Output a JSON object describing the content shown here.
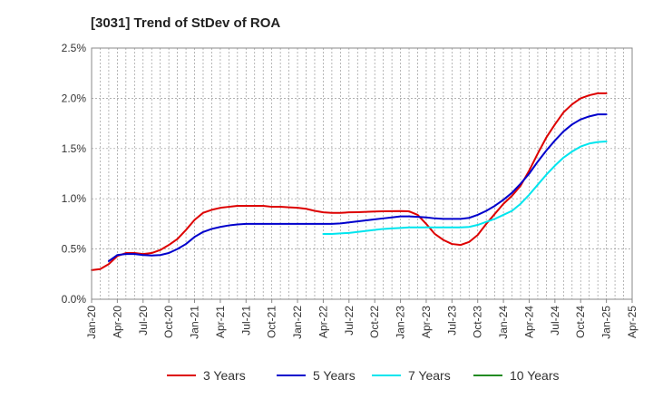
{
  "chart_data": {
    "type": "line",
    "title": "[3031]  Trend of StDev of ROA",
    "xlabel": "",
    "ylabel": "",
    "y_ticks": [
      "0.0%",
      "0.5%",
      "1.0%",
      "1.5%",
      "2.0%",
      "2.5%"
    ],
    "ylim": [
      0,
      2.5
    ],
    "x_ticks": [
      "Jan-20",
      "Apr-20",
      "Jul-20",
      "Oct-20",
      "Jan-21",
      "Apr-21",
      "Jul-21",
      "Oct-21",
      "Jan-22",
      "Apr-22",
      "Jul-22",
      "Oct-22",
      "Jan-23",
      "Apr-23",
      "Jul-23",
      "Oct-23",
      "Jan-24",
      "Apr-24",
      "Jul-24",
      "Oct-24",
      "Jan-25",
      "Apr-25"
    ],
    "grid": true,
    "legend_position": "bottom",
    "colors": {
      "3 Years": "#dd0000",
      "5 Years": "#0000cc",
      "7 Years": "#00e5ee",
      "10 Years": "#228b22",
      "grid": "#999999",
      "axis": "#888888"
    },
    "series": [
      {
        "name": "3 Years",
        "x": [
          "Jan-20",
          "Feb-20",
          "Mar-20",
          "Apr-20",
          "May-20",
          "Jun-20",
          "Jul-20",
          "Aug-20",
          "Sep-20",
          "Oct-20",
          "Nov-20",
          "Dec-20",
          "Jan-21",
          "Feb-21",
          "Mar-21",
          "Apr-21",
          "May-21",
          "Jun-21",
          "Jul-21",
          "Aug-21",
          "Sep-21",
          "Oct-21",
          "Nov-21",
          "Dec-21",
          "Jan-22",
          "Feb-22",
          "Mar-22",
          "Apr-22",
          "May-22",
          "Jun-22",
          "Jul-22",
          "Aug-22",
          "Sep-22",
          "Oct-22",
          "Nov-22",
          "Dec-22",
          "Jan-23",
          "Feb-23",
          "Mar-23",
          "Apr-23",
          "May-23",
          "Jun-23",
          "Jul-23",
          "Aug-23",
          "Sep-23",
          "Oct-23",
          "Nov-23",
          "Dec-23",
          "Jan-24",
          "Feb-24",
          "Mar-24",
          "Apr-24",
          "May-24",
          "Jun-24",
          "Jul-24",
          "Aug-24",
          "Sep-24",
          "Oct-24",
          "Nov-24",
          "Dec-24",
          "Jan-25"
        ],
        "values": [
          0.29,
          0.3,
          0.35,
          0.43,
          0.46,
          0.46,
          0.45,
          0.46,
          0.49,
          0.54,
          0.6,
          0.69,
          0.79,
          0.86,
          0.89,
          0.91,
          0.92,
          0.93,
          0.93,
          0.93,
          0.93,
          0.92,
          0.92,
          0.915,
          0.91,
          0.9,
          0.88,
          0.865,
          0.86,
          0.86,
          0.865,
          0.867,
          0.87,
          0.873,
          0.875,
          0.877,
          0.878,
          0.875,
          0.84,
          0.75,
          0.65,
          0.59,
          0.55,
          0.54,
          0.57,
          0.64,
          0.75,
          0.85,
          0.95,
          1.03,
          1.13,
          1.28,
          1.45,
          1.61,
          1.74,
          1.86,
          1.94,
          2.0,
          2.03,
          2.05,
          2.05
        ]
      },
      {
        "name": "5 Years",
        "x": [
          "Mar-20",
          "Apr-20",
          "May-20",
          "Jun-20",
          "Jul-20",
          "Aug-20",
          "Sep-20",
          "Oct-20",
          "Nov-20",
          "Dec-20",
          "Jan-21",
          "Feb-21",
          "Mar-21",
          "Apr-21",
          "May-21",
          "Jun-21",
          "Jul-21",
          "Aug-21",
          "Sep-21",
          "Oct-21",
          "Nov-21",
          "Dec-21",
          "Jan-22",
          "Feb-22",
          "Mar-22",
          "Apr-22",
          "May-22",
          "Jun-22",
          "Jul-22",
          "Aug-22",
          "Sep-22",
          "Oct-22",
          "Nov-22",
          "Dec-22",
          "Jan-23",
          "Feb-23",
          "Mar-23",
          "Apr-23",
          "May-23",
          "Jun-23",
          "Jul-23",
          "Aug-23",
          "Sep-23",
          "Oct-23",
          "Nov-23",
          "Dec-23",
          "Jan-24",
          "Feb-24",
          "Mar-24",
          "Apr-24",
          "May-24",
          "Jun-24",
          "Jul-24",
          "Aug-24",
          "Sep-24",
          "Oct-24",
          "Nov-24",
          "Dec-24",
          "Jan-25"
        ],
        "values": [
          0.38,
          0.44,
          0.45,
          0.45,
          0.44,
          0.435,
          0.44,
          0.46,
          0.5,
          0.55,
          0.62,
          0.67,
          0.7,
          0.72,
          0.735,
          0.745,
          0.75,
          0.75,
          0.75,
          0.75,
          0.75,
          0.75,
          0.75,
          0.75,
          0.75,
          0.75,
          0.75,
          0.755,
          0.765,
          0.775,
          0.785,
          0.795,
          0.805,
          0.815,
          0.825,
          0.825,
          0.82,
          0.815,
          0.805,
          0.8,
          0.8,
          0.8,
          0.81,
          0.84,
          0.88,
          0.93,
          0.99,
          1.06,
          1.15,
          1.25,
          1.37,
          1.48,
          1.58,
          1.67,
          1.74,
          1.79,
          1.82,
          1.84,
          1.84
        ]
      },
      {
        "name": "7 Years",
        "x": [
          "Apr-22",
          "May-22",
          "Jun-22",
          "Jul-22",
          "Aug-22",
          "Sep-22",
          "Oct-22",
          "Nov-22",
          "Dec-22",
          "Jan-23",
          "Feb-23",
          "Mar-23",
          "Apr-23",
          "May-23",
          "Jun-23",
          "Jul-23",
          "Aug-23",
          "Sep-23",
          "Oct-23",
          "Nov-23",
          "Dec-23",
          "Jan-24",
          "Feb-24",
          "Mar-24",
          "Apr-24",
          "May-24",
          "Jun-24",
          "Jul-24",
          "Aug-24",
          "Sep-24",
          "Oct-24",
          "Nov-24",
          "Dec-24",
          "Jan-25"
        ],
        "values": [
          0.65,
          0.65,
          0.655,
          0.66,
          0.67,
          0.68,
          0.69,
          0.7,
          0.705,
          0.71,
          0.715,
          0.715,
          0.715,
          0.715,
          0.715,
          0.715,
          0.715,
          0.72,
          0.74,
          0.77,
          0.8,
          0.84,
          0.88,
          0.95,
          1.04,
          1.14,
          1.24,
          1.33,
          1.41,
          1.47,
          1.52,
          1.55,
          1.565,
          1.57
        ]
      },
      {
        "name": "10 Years",
        "x": [],
        "values": []
      }
    ]
  }
}
